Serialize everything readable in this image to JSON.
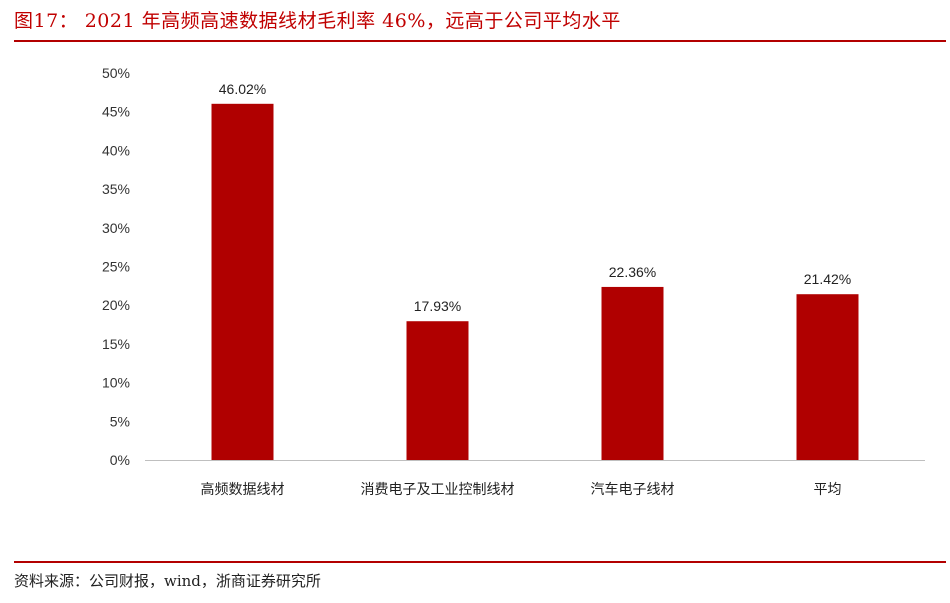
{
  "figure": {
    "title": "图17：  2021 年高频高速数据线材毛利率 46%，远高于公司平均水平",
    "source": "资料来源：公司财报，wind，浙商证券研究所"
  },
  "colors": {
    "bar": "#b00000",
    "title": "#c00000",
    "rule": "#b30000",
    "axis": "#bfbfbf"
  },
  "chart_data": {
    "type": "bar",
    "title": "",
    "xlabel": "",
    "ylabel": "",
    "categories": [
      "高频数据线材",
      "消费电子及工业控制线材",
      "汽车电子线材",
      "平均"
    ],
    "values": [
      46.02,
      17.93,
      22.36,
      21.42
    ],
    "value_labels": [
      "46.02%",
      "17.93%",
      "22.36%",
      "21.42%"
    ],
    "ylim": [
      0,
      50
    ],
    "yticks": [
      0,
      5,
      10,
      15,
      20,
      25,
      30,
      35,
      40,
      45,
      50
    ],
    "ytick_labels": [
      "0%",
      "5%",
      "10%",
      "15%",
      "20%",
      "25%",
      "30%",
      "35%",
      "40%",
      "45%",
      "50%"
    ],
    "grid": false,
    "legend": "none"
  }
}
